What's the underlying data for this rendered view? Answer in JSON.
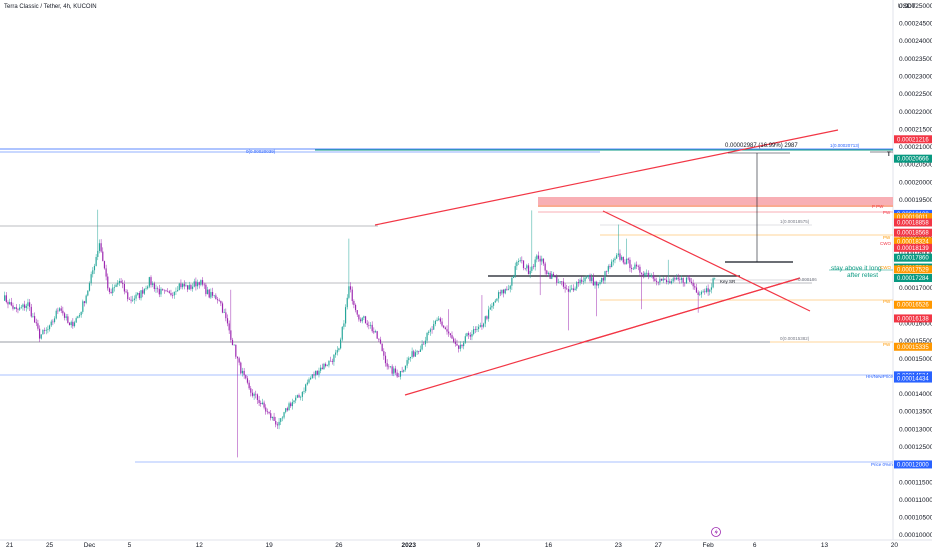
{
  "header": {
    "title": "Terra Classic / Tether, 4h, KUCOIN"
  },
  "chart_data": {
    "type": "candlestick",
    "title": "Terra Classic / Tether, 4h, KUCOIN",
    "currency": "USDT",
    "y_range": [
      0.0001,
      0.0002505
    ],
    "y_ticks": [
      "0.00025000",
      "0.00024500",
      "0.00024000",
      "0.00023500",
      "0.00023000",
      "0.00022500",
      "0.00022000",
      "0.00021500",
      "0.00021000",
      "0.00020500",
      "0.00020000",
      "0.00019500",
      "0.00019000",
      "0.00018500",
      "0.00018000",
      "0.00017500",
      "0.00017000",
      "0.00016500",
      "0.00016000",
      "0.00015500",
      "0.00015000",
      "0.00014500",
      "0.00014000",
      "0.00013500",
      "0.00013000",
      "0.00012500",
      "0.00012000",
      "0.00011500",
      "0.00011000",
      "0.00010500",
      "0.00010000"
    ],
    "x_ticks": [
      {
        "label": "21",
        "i": 4
      },
      {
        "label": "25",
        "i": 28
      },
      {
        "label": "Dec",
        "i": 52
      },
      {
        "label": "5",
        "i": 76
      },
      {
        "label": "12",
        "i": 118
      },
      {
        "label": "19",
        "i": 160
      },
      {
        "label": "26",
        "i": 202
      },
      {
        "label": "2023",
        "i": 244,
        "bold": true
      },
      {
        "label": "9",
        "i": 286
      },
      {
        "label": "16",
        "i": 328
      },
      {
        "label": "23",
        "i": 370
      },
      {
        "label": "27",
        "i": 394
      },
      {
        "label": "Feb",
        "i": 424
      },
      {
        "label": "6",
        "i": 452
      },
      {
        "label": "13",
        "i": 494
      },
      {
        "label": "20",
        "i": 536
      }
    ],
    "keypoints": [
      [
        0,
        0.0001675
      ],
      [
        8,
        0.0001635
      ],
      [
        15,
        0.0001655
      ],
      [
        22,
        0.0001565
      ],
      [
        28,
        0.0001585
      ],
      [
        34,
        0.000165
      ],
      [
        40,
        0.000159
      ],
      [
        46,
        0.0001625
      ],
      [
        52,
        0.000171
      ],
      [
        58,
        0.000183
      ],
      [
        64,
        0.000168
      ],
      [
        70,
        0.000172
      ],
      [
        76,
        0.0001665
      ],
      [
        82,
        0.000168
      ],
      [
        88,
        0.000172
      ],
      [
        94,
        0.000169
      ],
      [
        100,
        0.000168
      ],
      [
        106,
        0.000171
      ],
      [
        112,
        0.00017
      ],
      [
        118,
        0.000172
      ],
      [
        124,
        0.000168
      ],
      [
        130,
        0.000167
      ],
      [
        136,
        0.000158
      ],
      [
        142,
        0.000148
      ],
      [
        148,
        0.000141
      ],
      [
        154,
        0.000138
      ],
      [
        160,
        0.000134
      ],
      [
        166,
        0.000131
      ],
      [
        172,
        0.000137
      ],
      [
        178,
        0.000139
      ],
      [
        184,
        0.000144
      ],
      [
        190,
        0.000147
      ],
      [
        196,
        0.000149
      ],
      [
        202,
        0.000152
      ],
      [
        208,
        0.00017
      ],
      [
        214,
        0.000162
      ],
      [
        220,
        0.00016
      ],
      [
        226,
        0.000155
      ],
      [
        232,
        0.000147
      ],
      [
        238,
        0.0001455
      ],
      [
        244,
        0.00015
      ],
      [
        250,
        0.000153
      ],
      [
        256,
        0.000157
      ],
      [
        262,
        0.000161
      ],
      [
        268,
        0.000157
      ],
      [
        274,
        0.000152
      ],
      [
        280,
        0.000157
      ],
      [
        286,
        0.000158
      ],
      [
        292,
        0.000163
      ],
      [
        298,
        0.000168
      ],
      [
        304,
        0.00017
      ],
      [
        310,
        0.000178
      ],
      [
        316,
        0.000175
      ],
      [
        322,
        0.000179
      ],
      [
        328,
        0.000174
      ],
      [
        334,
        0.000172
      ],
      [
        340,
        0.0001685
      ],
      [
        346,
        0.000172
      ],
      [
        352,
        0.000173
      ],
      [
        358,
        0.0001705
      ],
      [
        364,
        0.0001755
      ],
      [
        370,
        0.000179
      ],
      [
        376,
        0.000177
      ],
      [
        382,
        0.000175
      ],
      [
        388,
        0.000174
      ],
      [
        394,
        0.0001725
      ],
      [
        400,
        0.0001715
      ],
      [
        406,
        0.000172
      ],
      [
        412,
        0.0001725
      ],
      [
        418,
        0.000169
      ],
      [
        424,
        0.00016975
      ],
      [
        428,
        0.0001728
      ]
    ],
    "spikes": [
      [
        57,
        0.0001922
      ],
      [
        137,
        0.0001695
      ],
      [
        141,
        0.000122
      ],
      [
        208,
        0.000184
      ],
      [
        268,
        0.000164
      ],
      [
        288,
        0.000168
      ],
      [
        318,
        0.000192
      ],
      [
        323,
        0.000168
      ],
      [
        340,
        0.000158
      ],
      [
        357,
        0.000162
      ],
      [
        370,
        0.000188
      ],
      [
        375,
        0.000184
      ],
      [
        384,
        0.000164
      ],
      [
        400,
        0.000178
      ],
      [
        418,
        0.000163
      ]
    ],
    "last_index": 428,
    "annotations": {
      "measure_label": "0.00002987 (16.99%) 2987",
      "key_sr": "Key SR",
      "stay_above_1": "stay above it long",
      "stay_above_2": "after retest",
      "pw": "PW",
      "cwo": "CWO",
      "pw_shift": "P PW",
      "fib_top": "1(0.00020713)",
      "fib_top_left": "0(0.00020039)",
      "fib_mid": "1(0.00018575)",
      "fib_bottom": "0(0.00015382)",
      "fib_right": "0.000186",
      "hh_note": "HH/NewPrice",
      "price_tag": "Price 0%m",
      "tf_mark": "T"
    },
    "price_badges": [
      {
        "text": "0.00021216",
        "value": 0.00021216,
        "color": "#f23645"
      },
      {
        "text": "0.00020666",
        "value": 0.00020666,
        "color": "#089981"
      },
      {
        "text": "0.00019100",
        "value": 0.000191,
        "color": "#2962ff"
      },
      {
        "text": "0.00019011",
        "value": 0.00019011,
        "color": "#ff9800"
      },
      {
        "text": "0.00018858",
        "value": 0.00018858,
        "color": "#f23645"
      },
      {
        "text": "0.00018568",
        "value": 0.00018568,
        "color": "#f23645"
      },
      {
        "text": "0.00018324",
        "value": 0.00018324,
        "color": "#ff9800"
      },
      {
        "text": "0.00018139",
        "value": 0.00018139,
        "color": "#f23645"
      },
      {
        "text": "0.00017860",
        "value": 0.0001786,
        "color": "#089981"
      },
      {
        "text": "0.00017580",
        "value": 0.0001758,
        "color": "#089981"
      },
      {
        "text": "0.00017529",
        "value": 0.00017529,
        "color": "#ff9800"
      },
      {
        "text": "0.00017284",
        "value": 0.00017284,
        "color": "#089981"
      },
      {
        "text": "0.00016526",
        "value": 0.00016526,
        "color": "#ff9800"
      },
      {
        "text": "0.00016138",
        "value": 0.00016138,
        "color": "#f23645"
      },
      {
        "text": "0.00015335",
        "value": 0.00015335,
        "color": "#ff9800"
      },
      {
        "text": "0.00014524",
        "value": 0.00014524,
        "color": "#2962ff"
      },
      {
        "text": "0.00014434",
        "value": 0.00014434,
        "color": "#2962ff"
      },
      {
        "text": "0.00012000",
        "value": 0.00012,
        "color": "#2962ff"
      }
    ],
    "colors": {
      "up": "#26a69a",
      "down": "#9c27b0",
      "trend": "#f23645",
      "zone": "#f7a1a8"
    }
  }
}
